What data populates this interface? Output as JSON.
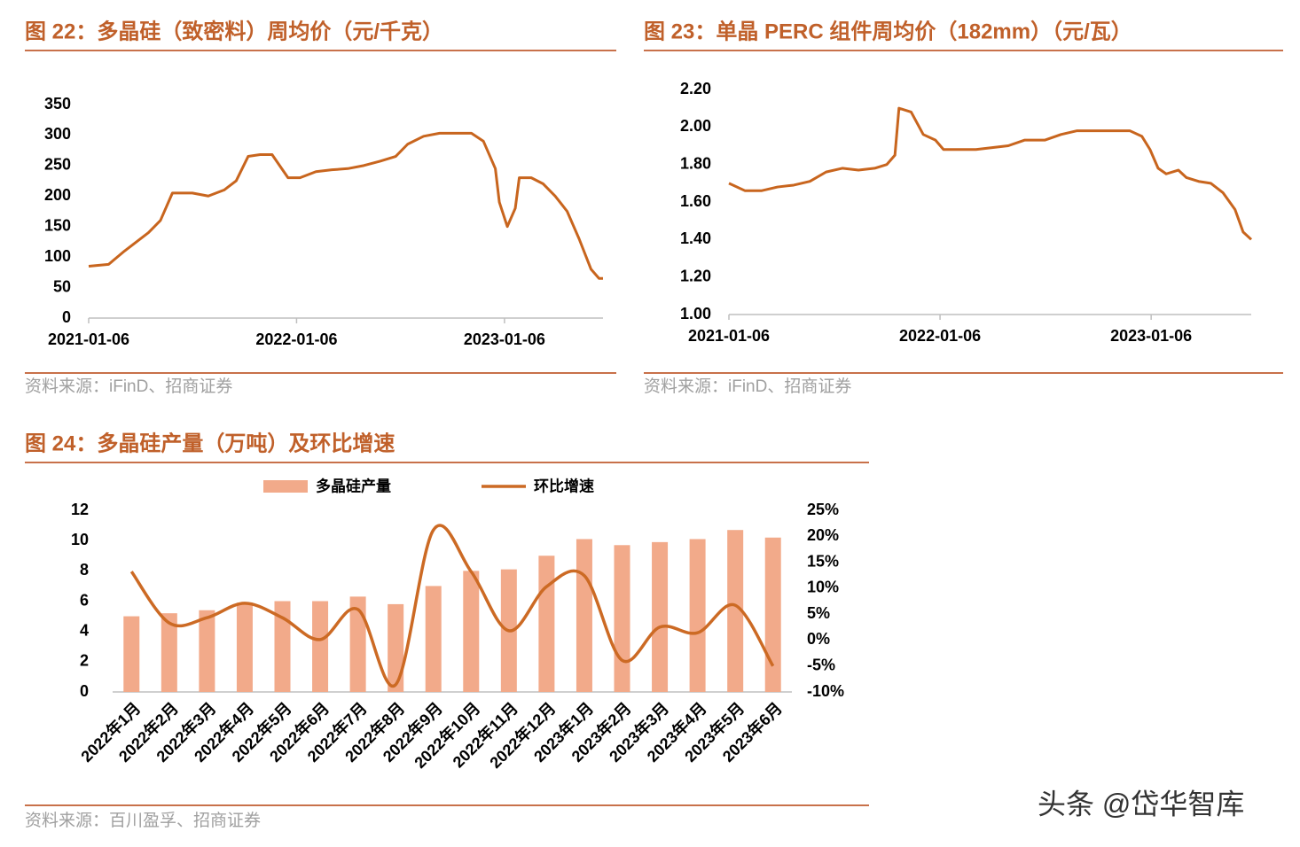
{
  "chart_data": [
    {
      "type": "line",
      "title": "图 22：多晶硅（致密料）周均价（元/千克）",
      "source": "资料来源：iFinD、招商证券",
      "color": "#c8651e",
      "x": [
        "2021-01-06",
        "2021-02-10",
        "2021-03-10",
        "2021-03-31",
        "2021-04-21",
        "2021-05-12",
        "2021-06-02",
        "2021-07-07",
        "2021-08-04",
        "2021-09-01",
        "2021-09-22",
        "2021-10-13",
        "2021-11-03",
        "2021-11-24",
        "2021-12-22",
        "2022-01-12",
        "2022-02-09",
        "2022-03-09",
        "2022-04-06",
        "2022-05-04",
        "2022-06-01",
        "2022-06-29",
        "2022-07-20",
        "2022-08-17",
        "2022-09-14",
        "2022-10-12",
        "2022-11-09",
        "2022-11-30",
        "2022-12-21",
        "2022-12-28",
        "2023-01-11",
        "2023-01-25",
        "2023-02-01",
        "2023-02-22",
        "2023-03-15",
        "2023-04-05",
        "2023-04-26",
        "2023-05-17",
        "2023-06-07",
        "2023-06-21",
        "2023-06-28"
      ],
      "values": [
        85,
        88,
        110,
        125,
        140,
        160,
        205,
        205,
        200,
        210,
        225,
        265,
        268,
        268,
        230,
        230,
        240,
        243,
        245,
        250,
        257,
        265,
        285,
        298,
        303,
        303,
        303,
        290,
        245,
        190,
        150,
        180,
        230,
        230,
        220,
        200,
        175,
        130,
        80,
        65,
        65
      ],
      "xlim": [
        "2021-01-06",
        "2023-06-28"
      ],
      "xticks": [
        "2021-01-06",
        "2022-01-06",
        "2023-01-06"
      ],
      "ylim": [
        0,
        350
      ],
      "yticks": [
        0,
        50,
        100,
        150,
        200,
        250,
        300,
        350
      ]
    },
    {
      "type": "line",
      "title": "图 23：单晶 PERC 组件周均价（182mm）（元/瓦）",
      "source": "资料来源：iFinD、招商证券",
      "color": "#c8651e",
      "x": [
        "2021-01-06",
        "2021-02-03",
        "2021-03-03",
        "2021-03-31",
        "2021-04-28",
        "2021-05-26",
        "2021-06-23",
        "2021-07-21",
        "2021-08-18",
        "2021-09-15",
        "2021-10-06",
        "2021-10-20",
        "2021-10-27",
        "2021-11-17",
        "2021-12-08",
        "2021-12-29",
        "2022-01-12",
        "2022-03-09",
        "2022-04-06",
        "2022-05-04",
        "2022-06-01",
        "2022-07-06",
        "2022-08-03",
        "2022-08-31",
        "2022-10-05",
        "2022-11-30",
        "2022-12-21",
        "2023-01-04",
        "2023-01-18",
        "2023-02-01",
        "2023-02-22",
        "2023-03-08",
        "2023-03-29",
        "2023-04-19",
        "2023-05-10",
        "2023-05-31",
        "2023-06-14",
        "2023-06-28"
      ],
      "values": [
        1.7,
        1.66,
        1.66,
        1.68,
        1.69,
        1.71,
        1.76,
        1.78,
        1.77,
        1.78,
        1.8,
        1.85,
        2.1,
        2.08,
        1.96,
        1.93,
        1.88,
        1.88,
        1.89,
        1.9,
        1.93,
        1.93,
        1.96,
        1.98,
        1.98,
        1.98,
        1.95,
        1.88,
        1.78,
        1.75,
        1.77,
        1.73,
        1.71,
        1.7,
        1.65,
        1.56,
        1.44,
        1.4
      ],
      "xlim": [
        "2021-01-06",
        "2023-06-28"
      ],
      "xticks": [
        "2021-01-06",
        "2022-01-06",
        "2023-01-06"
      ],
      "ylim": [
        1.0,
        2.2
      ],
      "yticks": [
        {
          "value": 1.0,
          "label": "1.00"
        },
        {
          "value": 1.2,
          "label": "1.20"
        },
        {
          "value": 1.4,
          "label": "1.40"
        },
        {
          "value": 1.6,
          "label": "1.60"
        },
        {
          "value": 1.8,
          "label": "1.80"
        },
        {
          "value": 2.0,
          "label": "2.00"
        },
        {
          "value": 2.2,
          "label": "2.20"
        }
      ]
    },
    {
      "type": "combo",
      "title": "图 24：多晶硅产量（万吨）及环比增速",
      "source": "资料来源：百川盈孚、招商证券",
      "categories": [
        "2022年1月",
        "2022年2月",
        "2022年3月",
        "2022年4月",
        "2022年5月",
        "2022年6月",
        "2022年7月",
        "2022年8月",
        "2022年9月",
        "2022年10月",
        "2022年11月",
        "2022年12月",
        "2023年1月",
        "2023年2月",
        "2023年3月",
        "2023年4月",
        "2023年5月",
        "2023年6月"
      ],
      "series": [
        {
          "name": "多晶硅产量",
          "type": "bar",
          "color": "#f2aa8a",
          "values": [
            5.0,
            5.2,
            5.4,
            5.9,
            6.0,
            6.0,
            6.3,
            5.8,
            7.0,
            8.0,
            8.1,
            9.0,
            10.1,
            9.7,
            9.9,
            10.1,
            10.7,
            10.2
          ]
        },
        {
          "name": "环比增速",
          "type": "line",
          "axis": "y2",
          "color": "#cc6a24",
          "values": [
            13.2,
            3.3,
            4.3,
            7.1,
            4.3,
            0.1,
            5.9,
            -8.6,
            21.2,
            13.2,
            1.8,
            10.3,
            12.4,
            -3.9,
            2.5,
            1.4,
            6.7,
            -5.0
          ]
        }
      ],
      "ylim": [
        0,
        12
      ],
      "yticks": [
        0,
        2,
        4,
        6,
        8,
        10,
        12
      ],
      "y2lim": [
        -10,
        25
      ],
      "y2ticks": [
        {
          "value": -10,
          "label": "-10%"
        },
        {
          "value": -5,
          "label": "-5%"
        },
        {
          "value": 0,
          "label": "0%"
        },
        {
          "value": 5,
          "label": "5%"
        },
        {
          "value": 10,
          "label": "10%"
        },
        {
          "value": 15,
          "label": "15%"
        },
        {
          "value": 20,
          "label": "20%"
        },
        {
          "value": 25,
          "label": "25%"
        }
      ]
    }
  ],
  "watermark": "头条 @岱华智库"
}
